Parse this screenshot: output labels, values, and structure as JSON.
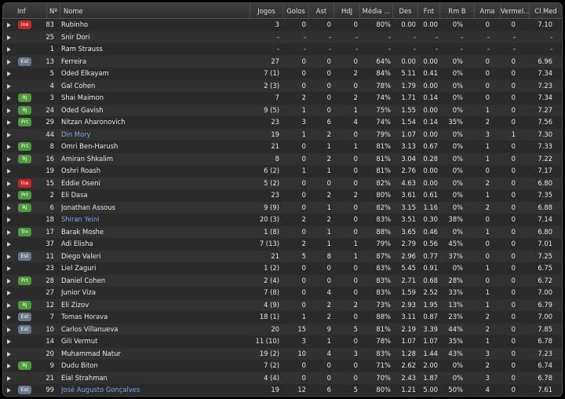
{
  "colors": {
    "badge_ine": "#c62828",
    "badge_green": "#4f9a3c",
    "badge_est": "#687987",
    "link_name": "#7fa9e6"
  },
  "headers": [
    "Inf",
    "Nº",
    "Nome",
    "Jogos",
    "Golos",
    "Ast",
    "HdJ",
    "Média ...",
    "Des",
    "Fnt",
    "Rm B",
    "Ama",
    "Vermel...",
    "Cl Med"
  ],
  "rows": [
    {
      "inf": "Ine",
      "no": "83",
      "name": "Rubinho",
      "link": false,
      "jogos": "3",
      "golos": "0",
      "ast": "0",
      "hdj": "0",
      "media": "80%",
      "des": "0.00",
      "fnt": "0.00",
      "rmb": "0%",
      "ama": "0",
      "verm": "0",
      "cl": "7.10"
    },
    {
      "inf": "",
      "no": "25",
      "name": "Snir Dori",
      "link": false,
      "jogos": "-",
      "golos": "-",
      "ast": "-",
      "hdj": "-",
      "media": "-",
      "des": "-",
      "fnt": "-",
      "rmb": "-",
      "ama": "-",
      "verm": "-",
      "cl": "-"
    },
    {
      "inf": "",
      "no": "1",
      "name": "Ram Strauss",
      "link": false,
      "jogos": "-",
      "golos": "-",
      "ast": "-",
      "hdj": "-",
      "media": "-",
      "des": "-",
      "fnt": "-",
      "rmb": "-",
      "ama": "-",
      "verm": "-",
      "cl": "-"
    },
    {
      "inf": "Est",
      "no": "13",
      "name": "Ferreira",
      "link": false,
      "jogos": "27",
      "golos": "0",
      "ast": "0",
      "hdj": "0",
      "media": "64%",
      "des": "0.00",
      "fnt": "0.00",
      "rmb": "0%",
      "ama": "0",
      "verm": "0",
      "cl": "6.96"
    },
    {
      "inf": "",
      "no": "5",
      "name": "Oded Elkayam",
      "link": false,
      "jogos": "7 (1)",
      "golos": "0",
      "ast": "0",
      "hdj": "2",
      "media": "84%",
      "des": "5.11",
      "fnt": "0.41",
      "rmb": "0%",
      "ama": "0",
      "verm": "0",
      "cl": "7.34"
    },
    {
      "inf": "",
      "no": "4",
      "name": "Gal Cohen",
      "link": false,
      "jogos": "2 (3)",
      "golos": "0",
      "ast": "0",
      "hdj": "0",
      "media": "78%",
      "des": "1.79",
      "fnt": "0.00",
      "rmb": "0%",
      "ama": "0",
      "verm": "0",
      "cl": "7.23"
    },
    {
      "inf": "RJ",
      "no": "3",
      "name": "Shai Maimon",
      "link": false,
      "jogos": "7",
      "golos": "2",
      "ast": "0",
      "hdj": "2",
      "media": "74%",
      "des": "1.71",
      "fnt": "0.14",
      "rmb": "0%",
      "ama": "0",
      "verm": "0",
      "cl": "7.34"
    },
    {
      "inf": "RJ",
      "no": "24",
      "name": "Oded Gavish",
      "link": false,
      "jogos": "9 (5)",
      "golos": "1",
      "ast": "0",
      "hdj": "1",
      "media": "75%",
      "des": "1.55",
      "fnt": "0.00",
      "rmb": "0%",
      "ama": "1",
      "verm": "0",
      "cl": "7.27"
    },
    {
      "inf": "Prt",
      "no": "29",
      "name": "Nitzan Aharonovich",
      "link": false,
      "jogos": "23",
      "golos": "3",
      "ast": "6",
      "hdj": "4",
      "media": "74%",
      "des": "1.54",
      "fnt": "0.14",
      "rmb": "35%",
      "ama": "2",
      "verm": "0",
      "cl": "7.56"
    },
    {
      "inf": "",
      "no": "44",
      "name": "Din Mory",
      "link": true,
      "jogos": "19",
      "golos": "1",
      "ast": "2",
      "hdj": "0",
      "media": "79%",
      "des": "1.07",
      "fnt": "0.00",
      "rmb": "0%",
      "ama": "3",
      "verm": "1",
      "cl": "7.30"
    },
    {
      "inf": "Prt",
      "no": "8",
      "name": "Omri Ben-Harush",
      "link": false,
      "jogos": "21",
      "golos": "0",
      "ast": "1",
      "hdj": "1",
      "media": "81%",
      "des": "3.13",
      "fnt": "0.67",
      "rmb": "0%",
      "ama": "1",
      "verm": "0",
      "cl": "7.33"
    },
    {
      "inf": "RJ",
      "no": "16",
      "name": "Amiran Shkalim",
      "link": false,
      "jogos": "8",
      "golos": "0",
      "ast": "2",
      "hdj": "0",
      "media": "81%",
      "des": "3.04",
      "fnt": "0.28",
      "rmb": "0%",
      "ama": "1",
      "verm": "0",
      "cl": "7.22"
    },
    {
      "inf": "",
      "no": "19",
      "name": "Oshri Roash",
      "link": false,
      "jogos": "6 (2)",
      "golos": "1",
      "ast": "1",
      "hdj": "0",
      "media": "81%",
      "des": "2.76",
      "fnt": "0.00",
      "rmb": "0%",
      "ama": "0",
      "verm": "0",
      "cl": "7.17"
    },
    {
      "inf": "Ine",
      "no": "15",
      "name": "Eddie Oseni",
      "link": false,
      "jogos": "5 (2)",
      "golos": "0",
      "ast": "0",
      "hdj": "0",
      "media": "82%",
      "des": "4.63",
      "fnt": "0.00",
      "rmb": "0%",
      "ama": "2",
      "verm": "0",
      "cl": "6.80"
    },
    {
      "inf": "Prt",
      "no": "2",
      "name": "Eli Dasa",
      "link": false,
      "jogos": "23",
      "golos": "0",
      "ast": "2",
      "hdj": "2",
      "media": "80%",
      "des": "3.61",
      "fnt": "0.61",
      "rmb": "0%",
      "ama": "1",
      "verm": "0",
      "cl": "7.35"
    },
    {
      "inf": "RJ",
      "no": "6",
      "name": "Jonathan Assous",
      "link": false,
      "jogos": "9 (9)",
      "golos": "0",
      "ast": "1",
      "hdj": "0",
      "media": "82%",
      "des": "3.15",
      "fnt": "1.16",
      "rmb": "0%",
      "ama": "2",
      "verm": "0",
      "cl": "6.88"
    },
    {
      "inf": "",
      "no": "18",
      "name": "Shiran Yeini",
      "link": true,
      "jogos": "20 (3)",
      "golos": "2",
      "ast": "2",
      "hdj": "0",
      "media": "83%",
      "des": "3.51",
      "fnt": "0.30",
      "rmb": "38%",
      "ama": "0",
      "verm": "0",
      "cl": "7.14"
    },
    {
      "inf": "Trn",
      "no": "17",
      "name": "Barak Moshe",
      "link": false,
      "jogos": "1 (8)",
      "golos": "0",
      "ast": "1",
      "hdj": "0",
      "media": "88%",
      "des": "3.65",
      "fnt": "0.46",
      "rmb": "0%",
      "ama": "1",
      "verm": "0",
      "cl": "6.80"
    },
    {
      "inf": "",
      "no": "37",
      "name": "Adi Elisha",
      "link": false,
      "jogos": "7 (13)",
      "golos": "2",
      "ast": "1",
      "hdj": "1",
      "media": "79%",
      "des": "2.79",
      "fnt": "0.56",
      "rmb": "45%",
      "ama": "0",
      "verm": "0",
      "cl": "7.01"
    },
    {
      "inf": "Est",
      "no": "11",
      "name": "Diego Valeri",
      "link": false,
      "jogos": "21",
      "golos": "5",
      "ast": "8",
      "hdj": "1",
      "media": "87%",
      "des": "2.96",
      "fnt": "0.77",
      "rmb": "37%",
      "ama": "0",
      "verm": "0",
      "cl": "7.25"
    },
    {
      "inf": "",
      "no": "23",
      "name": "Liel Zaguri",
      "link": false,
      "jogos": "1 (2)",
      "golos": "0",
      "ast": "0",
      "hdj": "0",
      "media": "83%",
      "des": "5.45",
      "fnt": "0.91",
      "rmb": "0%",
      "ama": "1",
      "verm": "0",
      "cl": "6.75"
    },
    {
      "inf": "Prt",
      "no": "28",
      "name": "Daniel Cohen",
      "link": false,
      "jogos": "2 (4)",
      "golos": "0",
      "ast": "0",
      "hdj": "0",
      "media": "83%",
      "des": "2.71",
      "fnt": "0.68",
      "rmb": "28%",
      "ama": "0",
      "verm": "0",
      "cl": "6.72"
    },
    {
      "inf": "",
      "no": "27",
      "name": "Junior Viza",
      "link": false,
      "jogos": "7 (8)",
      "golos": "0",
      "ast": "4",
      "hdj": "0",
      "media": "83%",
      "des": "1.59",
      "fnt": "2.52",
      "rmb": "33%",
      "ama": "1",
      "verm": "0",
      "cl": "7.00"
    },
    {
      "inf": "RJ",
      "no": "12",
      "name": "Eli Zizov",
      "link": false,
      "jogos": "4 (9)",
      "golos": "0",
      "ast": "2",
      "hdj": "2",
      "media": "73%",
      "des": "2.93",
      "fnt": "1.95",
      "rmb": "13%",
      "ama": "1",
      "verm": "0",
      "cl": "6.79"
    },
    {
      "inf": "Est",
      "no": "7",
      "name": "Tomas Horava",
      "link": false,
      "jogos": "18 (1)",
      "golos": "1",
      "ast": "2",
      "hdj": "0",
      "media": "88%",
      "des": "3.11",
      "fnt": "0.87",
      "rmb": "23%",
      "ama": "2",
      "verm": "0",
      "cl": "7.00"
    },
    {
      "inf": "Est",
      "no": "10",
      "name": "Carlos Villanueva",
      "link": false,
      "jogos": "20",
      "golos": "15",
      "ast": "9",
      "hdj": "5",
      "media": "81%",
      "des": "2.19",
      "fnt": "3.39",
      "rmb": "44%",
      "ama": "2",
      "verm": "0",
      "cl": "7.85"
    },
    {
      "inf": "",
      "no": "14",
      "name": "Gili Vermut",
      "link": false,
      "jogos": "11 (10)",
      "golos": "3",
      "ast": "1",
      "hdj": "0",
      "media": "78%",
      "des": "1.07",
      "fnt": "1.07",
      "rmb": "35%",
      "ama": "1",
      "verm": "0",
      "cl": "6.78"
    },
    {
      "inf": "",
      "no": "20",
      "name": "Muhammad Natur",
      "link": false,
      "jogos": "19 (2)",
      "golos": "10",
      "ast": "4",
      "hdj": "3",
      "media": "83%",
      "des": "1.28",
      "fnt": "1.44",
      "rmb": "43%",
      "ama": "3",
      "verm": "0",
      "cl": "7.23"
    },
    {
      "inf": "RJ",
      "no": "9",
      "name": "Dudu Biton",
      "link": false,
      "jogos": "7 (2)",
      "golos": "0",
      "ast": "0",
      "hdj": "0",
      "media": "71%",
      "des": "2.62",
      "fnt": "2.00",
      "rmb": "0%",
      "ama": "2",
      "verm": "0",
      "cl": "6.74"
    },
    {
      "inf": "",
      "no": "21",
      "name": "Eial Strahman",
      "link": false,
      "jogos": "4 (4)",
      "golos": "0",
      "ast": "0",
      "hdj": "0",
      "media": "70%",
      "des": "2.43",
      "fnt": "1.87",
      "rmb": "0%",
      "ama": "3",
      "verm": "0",
      "cl": "6.78"
    },
    {
      "inf": "Est",
      "no": "99",
      "name": "José Augusto Gonçalves",
      "link": true,
      "jogos": "19",
      "golos": "12",
      "ast": "6",
      "hdj": "5",
      "media": "80%",
      "des": "1.21",
      "fnt": "5.00",
      "rmb": "50%",
      "ama": "4",
      "verm": "0",
      "cl": "7.61"
    }
  ]
}
